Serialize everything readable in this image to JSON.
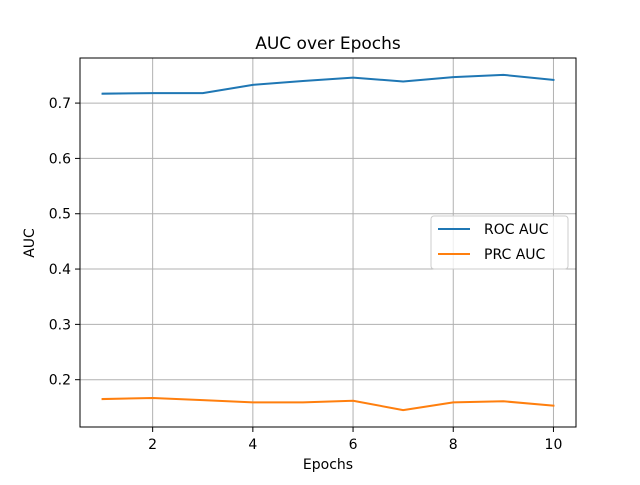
{
  "chart_data": {
    "type": "line",
    "title": "AUC over Epochs",
    "xlabel": "Epochs",
    "ylabel": "AUC",
    "x": [
      1,
      2,
      3,
      4,
      5,
      6,
      7,
      8,
      9,
      10
    ],
    "xlim": [
      0.55,
      10.45
    ],
    "ylim": [
      0.1145,
      0.7815
    ],
    "xticks": [
      2,
      4,
      6,
      8,
      10
    ],
    "yticks": [
      0.2,
      0.3,
      0.4,
      0.5,
      0.6,
      0.7
    ],
    "xtick_labels": [
      "2",
      "4",
      "6",
      "8",
      "10"
    ],
    "ytick_labels": [
      "0.2",
      "0.3",
      "0.4",
      "0.5",
      "0.6",
      "0.7"
    ],
    "grid": true,
    "legend_position": "center-right",
    "series": [
      {
        "name": "ROC AUC",
        "color": "#1f77b4",
        "values": [
          0.717,
          0.718,
          0.718,
          0.733,
          0.74,
          0.746,
          0.739,
          0.747,
          0.751,
          0.742
        ]
      },
      {
        "name": "PRC AUC",
        "color": "#ff7f0e",
        "values": [
          0.165,
          0.167,
          0.163,
          0.159,
          0.159,
          0.162,
          0.145,
          0.159,
          0.161,
          0.153
        ]
      }
    ]
  }
}
